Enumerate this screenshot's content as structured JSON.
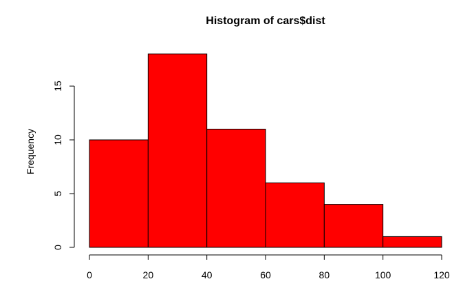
{
  "chart_data": {
    "type": "bar",
    "subtype": "histogram",
    "title": "Histogram of cars$dist",
    "xlabel": "",
    "ylabel": "Frequency",
    "bins": [
      {
        "start": 0,
        "end": 20,
        "count": 10
      },
      {
        "start": 20,
        "end": 40,
        "count": 18
      },
      {
        "start": 40,
        "end": 60,
        "count": 11
      },
      {
        "start": 60,
        "end": 80,
        "count": 6
      },
      {
        "start": 80,
        "end": 100,
        "count": 4
      },
      {
        "start": 100,
        "end": 120,
        "count": 1
      }
    ],
    "xlim": [
      0,
      120
    ],
    "ylim": [
      0,
      18
    ],
    "x_ticks": [
      0,
      20,
      40,
      60,
      80,
      100,
      120
    ],
    "y_ticks": [
      0,
      5,
      10,
      15
    ],
    "grid": false,
    "legend": "none",
    "colors": {
      "bar_fill": "#ff0000",
      "bar_stroke": "#000000",
      "axis": "#000000",
      "background": "#ffffff"
    }
  }
}
